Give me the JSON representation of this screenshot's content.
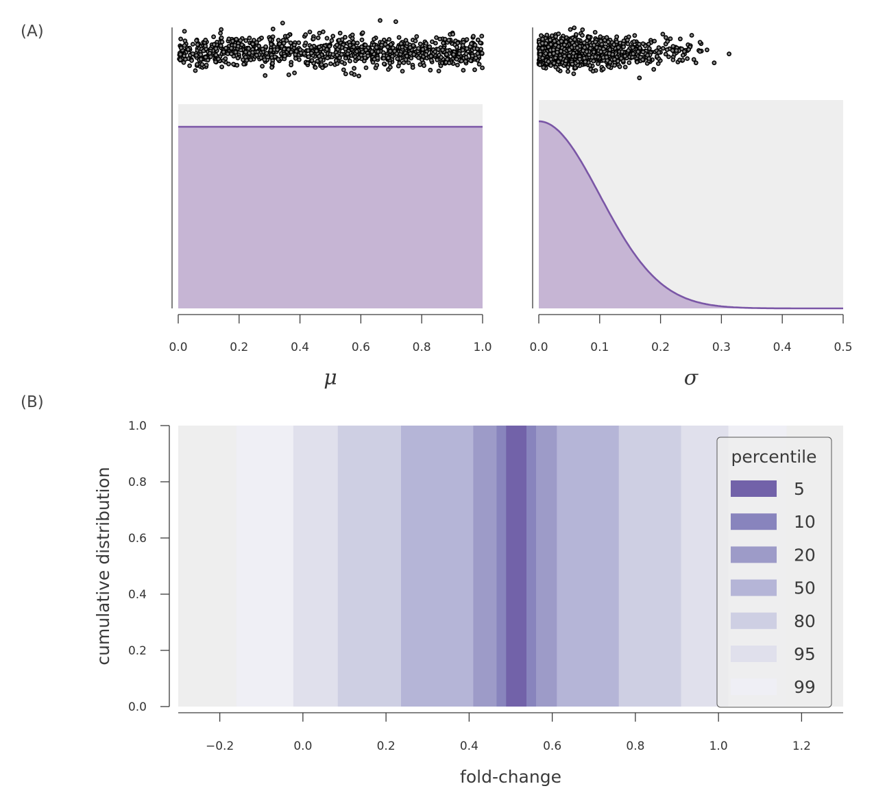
{
  "panel_labels": {
    "a": "(A)",
    "b": "(B)"
  },
  "colors": {
    "panel_bg": "#eeeeee",
    "prior_fill": "#c6b5d4",
    "prior_line": "#7a56a6",
    "dot": "#000000",
    "percentile_bands": {
      "5": "#7262a9",
      "10": "#8884bd",
      "20": "#9d9bc8",
      "50": "#b5b5d7",
      "80": "#cecfe3",
      "95": "#e0e0ec",
      "99": "#efeff5"
    }
  },
  "chart_data": [
    {
      "id": "panel-a-mu",
      "type": "area",
      "title": "",
      "xlabel": "μ",
      "ylabel": "",
      "xlim": [
        0.0,
        1.0
      ],
      "xticks": [
        "0.0",
        "0.2",
        "0.4",
        "0.6",
        "0.8",
        "1.0"
      ],
      "grid": false,
      "density": {
        "distribution": "uniform",
        "low": 0.0,
        "high": 1.0
      },
      "samples": {
        "distribution": "uniform",
        "low": 0.0,
        "high": 1.0,
        "count": 1000,
        "display": "jittered strip above density"
      }
    },
    {
      "id": "panel-a-sigma",
      "type": "area",
      "title": "",
      "xlabel": "σ",
      "ylabel": "",
      "xlim": [
        0.0,
        0.5
      ],
      "xticks": [
        "0.0",
        "0.1",
        "0.2",
        "0.3",
        "0.4",
        "0.5"
      ],
      "grid": false,
      "density": {
        "distribution": "half-normal",
        "scale": 0.1
      },
      "samples": {
        "distribution": "half-normal",
        "scale": 0.1,
        "count": 1000,
        "max_visible": 0.32,
        "display": "jittered strip above density"
      }
    },
    {
      "id": "panel-b-percentiles",
      "type": "area",
      "title": "",
      "xlabel": "fold-change",
      "ylabel": "cumulative distribution",
      "xlim": [
        -0.3,
        1.3
      ],
      "ylim": [
        0.0,
        1.0
      ],
      "xticks": [
        "−0.2",
        "0.0",
        "0.2",
        "0.4",
        "0.6",
        "0.8",
        "1.0",
        "1.2"
      ],
      "xtick_values": [
        -0.2,
        0.0,
        0.2,
        0.4,
        0.6,
        0.8,
        1.0,
        1.2
      ],
      "yticks": [
        "0.0",
        "0.2",
        "0.4",
        "0.6",
        "0.8",
        "1.0"
      ],
      "ytick_values": [
        0.0,
        0.2,
        0.4,
        0.6,
        0.8,
        1.0
      ],
      "grid": false,
      "legend": {
        "title": "percentile",
        "position": "top-right"
      },
      "series": [
        {
          "name": "99",
          "low": -0.16,
          "high": 1.164
        },
        {
          "name": "95",
          "low": -0.023,
          "high": 1.024
        },
        {
          "name": "80",
          "low": 0.084,
          "high": 0.91
        },
        {
          "name": "50",
          "low": 0.236,
          "high": 0.76
        },
        {
          "name": "20",
          "low": 0.41,
          "high": 0.611
        },
        {
          "name": "10",
          "low": 0.466,
          "high": 0.561
        },
        {
          "name": "5",
          "low": 0.489,
          "high": 0.538
        }
      ],
      "legend_order": [
        "5",
        "10",
        "20",
        "50",
        "80",
        "95",
        "99"
      ]
    }
  ]
}
